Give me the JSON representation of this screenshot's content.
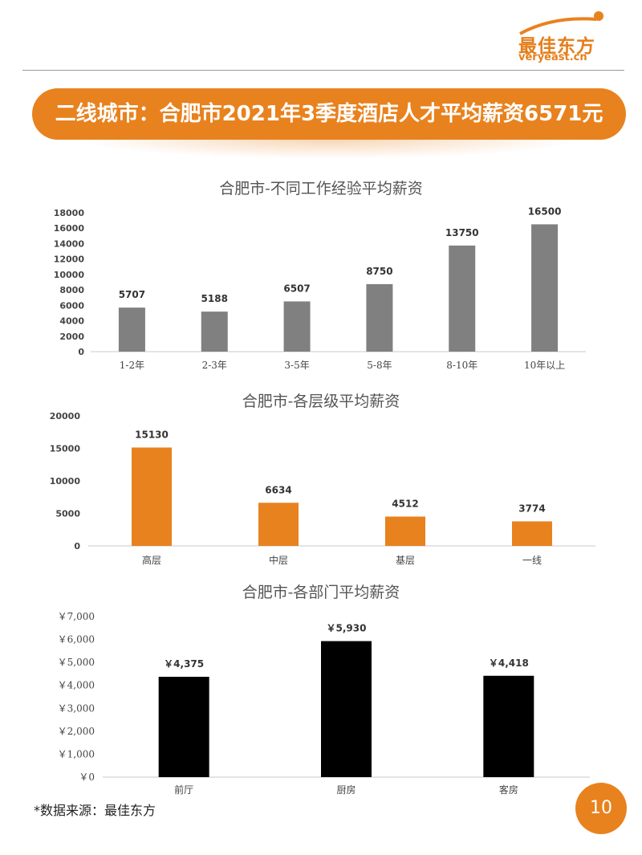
{
  "logo": {
    "cn": "最佳东方",
    "en": "veryeast.cn"
  },
  "banner": {
    "title": "二线城市：合肥市2021年3季度酒店人才平均薪资6571元"
  },
  "source": "*数据来源：最佳东方",
  "page_number": "10",
  "colors": {
    "accent": "#e8821e",
    "gray_bar": "#808080",
    "black_bar": "#000000"
  },
  "chart_data": [
    {
      "type": "bar",
      "title": "合肥市-不同工作经验平均薪资",
      "categories": [
        "1-2年",
        "2-3年",
        "3-5年",
        "5-8年",
        "8-10年",
        "10年以上"
      ],
      "values": [
        5707,
        5188,
        6507,
        8750,
        13750,
        16500
      ],
      "data_labels": [
        "5707",
        "5188",
        "6507",
        "8750",
        "13750",
        "16500"
      ],
      "yticks": [
        "0",
        "2000",
        "4000",
        "6000",
        "8000",
        "10000",
        "12000",
        "14000",
        "16000",
        "18000"
      ],
      "ylim": [
        0,
        18000
      ],
      "color": "#808080",
      "grid": false
    },
    {
      "type": "bar",
      "title": "合肥市-各层级平均薪资",
      "categories": [
        "高层",
        "中层",
        "基层",
        "一线"
      ],
      "values": [
        15130,
        6634,
        4512,
        3774
      ],
      "data_labels": [
        "15130",
        "6634",
        "4512",
        "3774"
      ],
      "yticks": [
        "0",
        "5000",
        "10000",
        "15000",
        "20000"
      ],
      "ylim": [
        0,
        20000
      ],
      "color": "#e8821e",
      "grid": false
    },
    {
      "type": "bar",
      "title": "合肥市-各部门平均薪资",
      "categories": [
        "前厅",
        "厨房",
        "客房"
      ],
      "values": [
        4375,
        5930,
        4418
      ],
      "data_labels": [
        "￥4,375",
        "￥5,930",
        "￥4,418"
      ],
      "yticks": [
        "￥0",
        "￥1,000",
        "￥2,000",
        "￥3,000",
        "￥4,000",
        "￥5,000",
        "￥6,000",
        "￥7,000"
      ],
      "ylim": [
        0,
        7000
      ],
      "color": "#000000",
      "grid": false
    }
  ]
}
